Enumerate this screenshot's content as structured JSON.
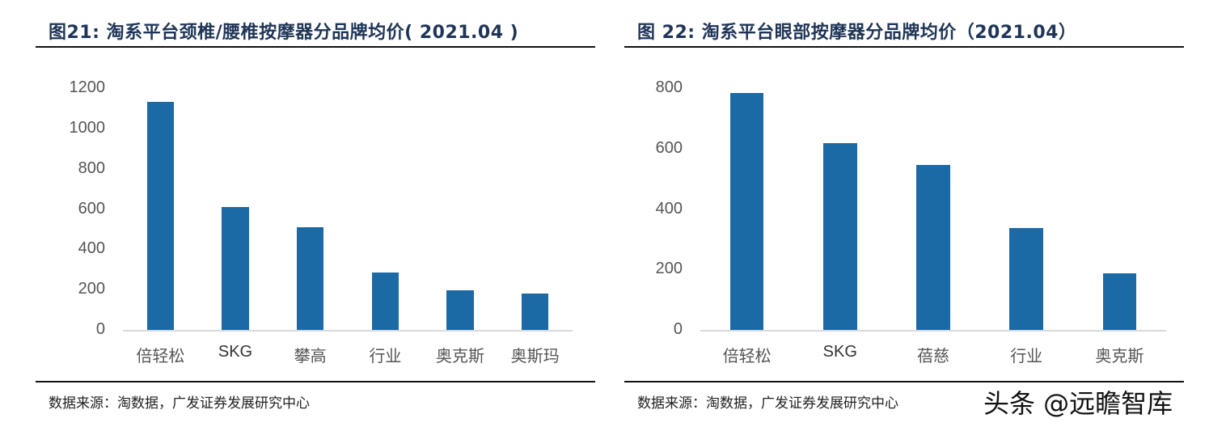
{
  "charts": [
    {
      "title": "图21: 淘系平台颈椎/腰椎按摩器分品牌均价( 2021.04 )",
      "source": "数据来源：淘数据，广发证券发展研究中心",
      "y_ticks": [
        "0",
        "200",
        "400",
        "600",
        "800",
        "1000",
        "1200"
      ],
      "categories": [
        "倍轻松",
        "SKG",
        "攀高",
        "行业",
        "奥克斯",
        "奥斯玛"
      ]
    },
    {
      "title": "图 22: 淘系平台眼部按摩器分品牌均价（2021.04）",
      "source": "数据来源：淘数据，广发证券发展研究中心",
      "y_ticks": [
        "0",
        "200",
        "400",
        "600",
        "800"
      ],
      "categories": [
        "倍轻松",
        "SKG",
        "蓓慈",
        "行业",
        "奥克斯"
      ]
    }
  ],
  "watermark": "头条 @远瞻智库",
  "colors": {
    "bar": "#1c6aa5",
    "title": "#1f3557",
    "axis": "#d9d9d9"
  },
  "chart_data": [
    {
      "type": "bar",
      "title": "图21: 淘系平台颈椎/腰椎按摩器分品牌均价( 2021.04 )",
      "categories": [
        "倍轻松",
        "SKG",
        "攀高",
        "行业",
        "奥克斯",
        "奥斯玛"
      ],
      "values": [
        1132,
        610,
        510,
        285,
        197,
        181
      ],
      "xlabel": "",
      "ylabel": "",
      "ylim": [
        0,
        1200
      ],
      "yticks": [
        0,
        200,
        400,
        600,
        800,
        1000,
        1200
      ],
      "grid": false,
      "legend": null,
      "source": "数据来源：淘数据，广发证券发展研究中心"
    },
    {
      "type": "bar",
      "title": "图 22: 淘系平台眼部按摩器分品牌均价（2021.04）",
      "categories": [
        "倍轻松",
        "SKG",
        "蓓慈",
        "行业",
        "奥克斯"
      ],
      "values": [
        784,
        618,
        546,
        337,
        187
      ],
      "xlabel": "",
      "ylabel": "",
      "ylim": [
        0,
        800
      ],
      "yticks": [
        0,
        200,
        400,
        600,
        800
      ],
      "grid": false,
      "legend": null,
      "source": "数据来源：淘数据，广发证券发展研究中心"
    }
  ]
}
